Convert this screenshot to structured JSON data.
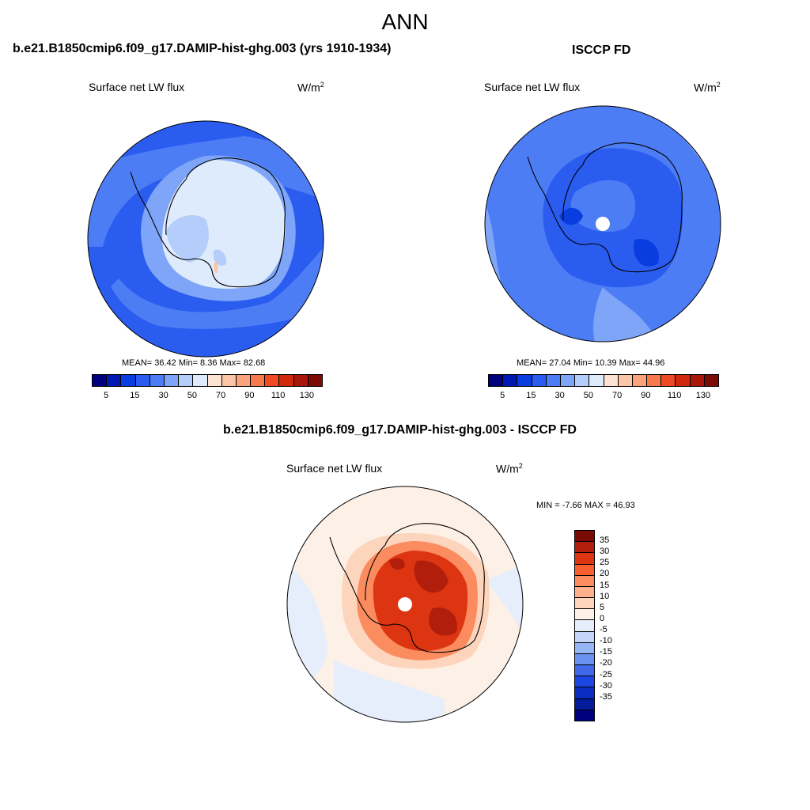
{
  "figure": {
    "title": "ANN"
  },
  "panels": {
    "model": {
      "title": "b.e21.B1850cmip6.f09_g17.DAMIP-hist-ghg.003 (yrs 1910-1934)",
      "field": "Surface net LW flux",
      "units": "W/m",
      "units_sup": "2",
      "stats": "MEAN=  36.42  Min=   8.36  Max=  82.68"
    },
    "obs": {
      "title": "ISCCP FD",
      "field": "Surface net LW flux",
      "units": "W/m",
      "units_sup": "2",
      "stats": "MEAN=  27.04  Min=  10.39  Max=  44.96"
    },
    "diff": {
      "title": "b.e21.B1850cmip6.f09_g17.DAMIP-hist-ghg.003 - ISCCP FD",
      "field": "Surface net LW flux",
      "units": "W/m",
      "units_sup": "2",
      "stats": "MIN =  -7.66 MAX =  46.93"
    }
  },
  "colorbar_main": {
    "colors": [
      "#00007f",
      "#0019b3",
      "#0a3de0",
      "#2a5cf0",
      "#4d7df5",
      "#7ea5f7",
      "#b4cdfa",
      "#deebfc",
      "#fde3d2",
      "#fcc5a8",
      "#fba37c",
      "#f77a4f",
      "#ee4a23",
      "#cf2a0c",
      "#a8180a",
      "#7b0c05"
    ],
    "ticks": [
      "5",
      "15",
      "30",
      "50",
      "70",
      "90",
      "110",
      "130"
    ]
  },
  "colorbar_diff": {
    "colors": [
      "#7b0c05",
      "#b21e0c",
      "#dd3512",
      "#f75f2e",
      "#fb8c60",
      "#fdb08e",
      "#fdd5bd",
      "#fdf0e6",
      "#e6eefb",
      "#c3d6f9",
      "#97b6f5",
      "#6b92ef",
      "#4268ea",
      "#1c47e2",
      "#0a2cc0",
      "#041b9c",
      "#00007f"
    ],
    "ticks": [
      "35",
      "30",
      "25",
      "20",
      "15",
      "10",
      "5",
      "0",
      "-5",
      "-10",
      "-15",
      "-20",
      "-25",
      "-30",
      "-35"
    ]
  }
}
